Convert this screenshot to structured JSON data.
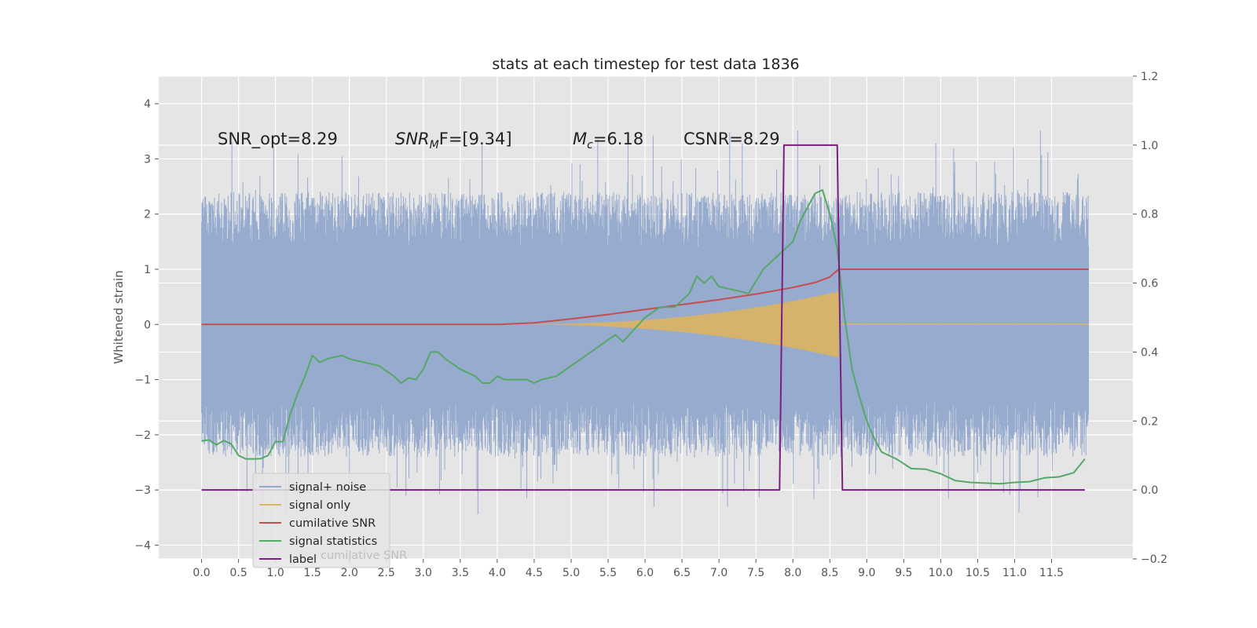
{
  "chart_data": {
    "type": "line",
    "title": "stats at each timestep for test data 1836",
    "ylabel": "Whitened strain",
    "xlim": [
      -0.58,
      12.6
    ],
    "ylim": [
      -4.25,
      4.5
    ],
    "y2lim": [
      -0.2,
      1.2
    ],
    "grid": true,
    "legend_position": "lower-left",
    "x_ticks": [
      "0.0",
      "0.5",
      "1.0",
      "1.5",
      "2.0",
      "2.5",
      "3.0",
      "3.5",
      "4.0",
      "4.5",
      "5.0",
      "5.5",
      "6.0",
      "6.5",
      "7.0",
      "7.5",
      "8.0",
      "8.5",
      "9.0",
      "9.5",
      "10.0",
      "10.5",
      "11.0",
      "11.5"
    ],
    "y_ticks": [
      "4",
      "3",
      "2",
      "1",
      "0",
      "−1",
      "−2",
      "−3",
      "−4"
    ],
    "y2_ticks": [
      "1.2",
      "1.0",
      "0.8",
      "0.6",
      "0.4",
      "0.2",
      "0.0",
      "−0.2"
    ],
    "annotations": {
      "snr_opt": "SNR_opt=8.29",
      "snr_mf_base": "SNR",
      "snr_mf_sub": "M",
      "snr_mf_rest": "F=[9.34]",
      "mc_base": "M",
      "mc_sub": "c",
      "mc_rest": "=6.18",
      "csnr": "CSNR=8.29"
    },
    "series": [
      {
        "name": "signal+ noise",
        "color": "#92a8cc",
        "kind": "noise",
        "amplitude_typical": 2.0,
        "x_range": [
          0.0,
          12.0
        ]
      },
      {
        "name": "signal only",
        "color": "#ddb45f",
        "kind": "chirp",
        "x_range": [
          4.0,
          8.62
        ],
        "max_amplitude": 0.6
      },
      {
        "name": "cumilative SNR",
        "color": "#c44e52",
        "points": [
          [
            0.0,
            0.0
          ],
          [
            4.0,
            0.0
          ],
          [
            4.5,
            0.03
          ],
          [
            5.0,
            0.1
          ],
          [
            5.5,
            0.18
          ],
          [
            6.0,
            0.27
          ],
          [
            6.5,
            0.36
          ],
          [
            7.0,
            0.45
          ],
          [
            7.5,
            0.55
          ],
          [
            8.0,
            0.67
          ],
          [
            8.3,
            0.76
          ],
          [
            8.5,
            0.86
          ],
          [
            8.62,
            1.0
          ],
          [
            12.0,
            1.0
          ]
        ]
      },
      {
        "name": "signal statistics",
        "color": "#55a868",
        "axis": "right",
        "points": [
          [
            0.0,
            0.142
          ],
          [
            0.1,
            0.145
          ],
          [
            0.2,
            0.131
          ],
          [
            0.3,
            0.143
          ],
          [
            0.4,
            0.134
          ],
          [
            0.5,
            0.1
          ],
          [
            0.6,
            0.09
          ],
          [
            0.7,
            0.09
          ],
          [
            0.8,
            0.091
          ],
          [
            0.9,
            0.1
          ],
          [
            1.0,
            0.14
          ],
          [
            1.1,
            0.14
          ],
          [
            1.2,
            0.22
          ],
          [
            1.3,
            0.28
          ],
          [
            1.4,
            0.33
          ],
          [
            1.5,
            0.39
          ],
          [
            1.6,
            0.37
          ],
          [
            1.7,
            0.38
          ],
          [
            1.8,
            0.385
          ],
          [
            1.9,
            0.39
          ],
          [
            2.0,
            0.38
          ],
          [
            2.2,
            0.37
          ],
          [
            2.4,
            0.36
          ],
          [
            2.6,
            0.33
          ],
          [
            2.7,
            0.31
          ],
          [
            2.8,
            0.325
          ],
          [
            2.9,
            0.32
          ],
          [
            3.0,
            0.35
          ],
          [
            3.1,
            0.4
          ],
          [
            3.2,
            0.4
          ],
          [
            3.3,
            0.38
          ],
          [
            3.5,
            0.35
          ],
          [
            3.7,
            0.33
          ],
          [
            3.8,
            0.31
          ],
          [
            3.9,
            0.31
          ],
          [
            4.0,
            0.33
          ],
          [
            4.1,
            0.32
          ],
          [
            4.2,
            0.32
          ],
          [
            4.4,
            0.32
          ],
          [
            4.5,
            0.31
          ],
          [
            4.6,
            0.32
          ],
          [
            4.8,
            0.33
          ],
          [
            5.0,
            0.36
          ],
          [
            5.2,
            0.39
          ],
          [
            5.4,
            0.42
          ],
          [
            5.6,
            0.45
          ],
          [
            5.7,
            0.43
          ],
          [
            6.0,
            0.5
          ],
          [
            6.2,
            0.53
          ],
          [
            6.4,
            0.53
          ],
          [
            6.6,
            0.57
          ],
          [
            6.7,
            0.62
          ],
          [
            6.8,
            0.6
          ],
          [
            6.9,
            0.62
          ],
          [
            7.0,
            0.59
          ],
          [
            7.2,
            0.58
          ],
          [
            7.4,
            0.57
          ],
          [
            7.6,
            0.64
          ],
          [
            7.8,
            0.68
          ],
          [
            8.0,
            0.72
          ],
          [
            8.1,
            0.78
          ],
          [
            8.3,
            0.86
          ],
          [
            8.4,
            0.87
          ],
          [
            8.5,
            0.8
          ],
          [
            8.6,
            0.7
          ],
          [
            8.7,
            0.5
          ],
          [
            8.8,
            0.35
          ],
          [
            8.9,
            0.27
          ],
          [
            9.0,
            0.2
          ],
          [
            9.1,
            0.15
          ],
          [
            9.2,
            0.11
          ],
          [
            9.4,
            0.09
          ],
          [
            9.6,
            0.062
          ],
          [
            9.8,
            0.06
          ],
          [
            10.0,
            0.047
          ],
          [
            10.2,
            0.027
          ],
          [
            10.4,
            0.022
          ],
          [
            10.6,
            0.02
          ],
          [
            10.8,
            0.018
          ],
          [
            11.0,
            0.022
          ],
          [
            11.2,
            0.024
          ],
          [
            11.4,
            0.035
          ],
          [
            11.6,
            0.038
          ],
          [
            11.8,
            0.05
          ],
          [
            11.95,
            0.09
          ]
        ]
      },
      {
        "name": "label",
        "color": "#7a1f7e",
        "axis": "right",
        "points": [
          [
            0.0,
            0.0
          ],
          [
            7.82,
            0.0
          ],
          [
            7.88,
            1.0
          ],
          [
            8.6,
            1.0
          ],
          [
            8.67,
            0.0
          ],
          [
            11.95,
            0.0
          ]
        ]
      }
    ],
    "legend_overlap_text": "cumilative SNR"
  }
}
